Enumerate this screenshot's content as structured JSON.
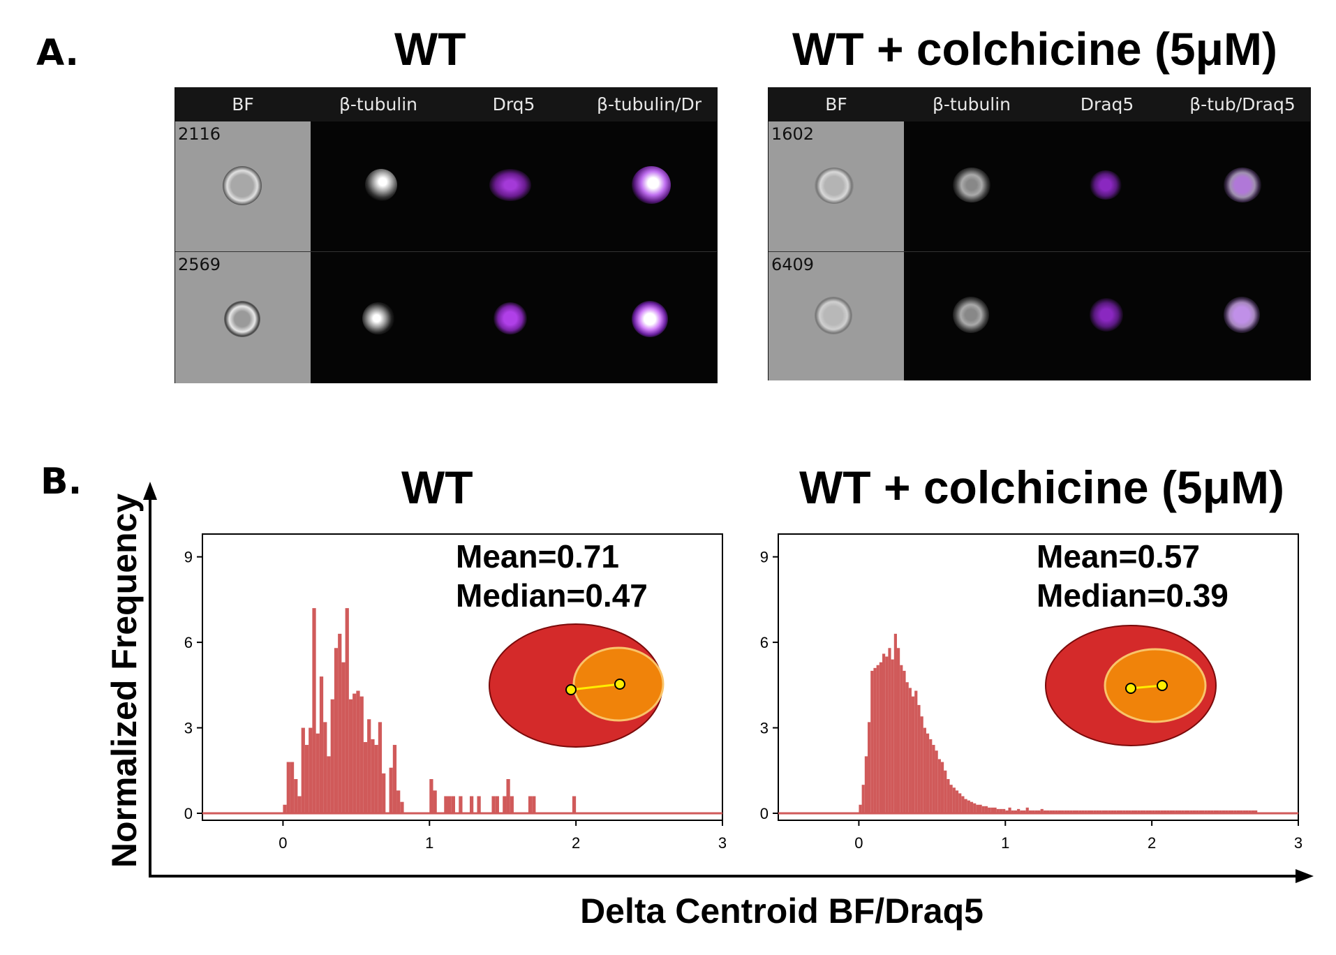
{
  "panel_a": {
    "letter": "A.",
    "wt": {
      "title": "WT",
      "columns": [
        "BF",
        "β-tubulin",
        "Drq5",
        "β-tubulin/Dr"
      ],
      "rows": [
        {
          "id": "2116"
        },
        {
          "id": "2569"
        }
      ]
    },
    "colchicine": {
      "title": "WT + colchicine (5μM)",
      "columns": [
        "BF",
        "β-tubulin",
        "Draq5",
        "β-tub/Draq5"
      ],
      "rows": [
        {
          "id": "1602"
        },
        {
          "id": "6409"
        }
      ]
    }
  },
  "panel_b": {
    "letter": "B.",
    "y_label": "Normalized Frequency",
    "x_label": "Delta Centroid BF/Draq5"
  },
  "chart_data": [
    {
      "type": "bar",
      "title": "WT",
      "xlabel": "Delta Centroid BF/Draq5",
      "ylabel": "Normalized Frequency",
      "xlim": [
        -0.55,
        3.0
      ],
      "ylim": [
        0,
        9.8
      ],
      "xticks": [
        "0",
        "1",
        "2",
        "3"
      ],
      "yticks": [
        "0",
        "3",
        "6",
        "9"
      ],
      "bin_width": 0.025,
      "bin_start": 0.0,
      "values": [
        0.3,
        1.8,
        1.8,
        1.2,
        0.6,
        3.0,
        2.4,
        3.0,
        7.2,
        2.8,
        4.8,
        3.2,
        2.0,
        4.0,
        5.8,
        6.3,
        5.3,
        7.2,
        4.0,
        4.2,
        4.3,
        4.1,
        2.5,
        3.3,
        2.6,
        2.4,
        3.2,
        1.4,
        0.0,
        1.6,
        2.4,
        0.8,
        0.4,
        0,
        0,
        0,
        0,
        0,
        0,
        0,
        1.2,
        0.8,
        0,
        0,
        0.6,
        0.6,
        0.6,
        0,
        0.6,
        0,
        0,
        0.6,
        0,
        0.6,
        0,
        0,
        0,
        0.6,
        0.6,
        0,
        0.6,
        1.2,
        0.6,
        0,
        0,
        0,
        0,
        0.6,
        0.6,
        0,
        0,
        0,
        0,
        0,
        0,
        0,
        0,
        0,
        0,
        0.6
      ],
      "stats": {
        "mean": "Mean=0.71",
        "median": "Median=0.47"
      },
      "colors": {
        "bar": "#d05a5a",
        "outer": "#d42a2a",
        "inner": "#f0830a",
        "inner_edge": "#f9c46a",
        "dot": "#ffee00"
      }
    },
    {
      "type": "bar",
      "title": "WT + colchicine (5μM)",
      "xlabel": "Delta Centroid BF/Draq5",
      "ylabel": "Normalized Frequency",
      "xlim": [
        -0.55,
        3.0
      ],
      "ylim": [
        0,
        9.8
      ],
      "xticks": [
        "0",
        "1",
        "2",
        "3"
      ],
      "yticks": [
        "0",
        "3",
        "6",
        "9"
      ],
      "bin_width": 0.02,
      "bin_start": 0.0,
      "values": [
        0.3,
        1.0,
        2.0,
        3.2,
        5.0,
        5.1,
        5.2,
        5.3,
        5.6,
        5.5,
        5.8,
        5.4,
        6.3,
        5.8,
        5.2,
        5.0,
        4.6,
        4.4,
        4.1,
        4.3,
        3.8,
        3.4,
        3.0,
        2.8,
        2.6,
        2.4,
        2.2,
        1.9,
        1.8,
        1.5,
        1.2,
        1.0,
        0.9,
        0.8,
        0.7,
        0.6,
        0.5,
        0.45,
        0.4,
        0.35,
        0.3,
        0.3,
        0.25,
        0.25,
        0.2,
        0.2,
        0.2,
        0.15,
        0.15,
        0.15,
        0.1,
        0.2,
        0.1,
        0.1,
        0.15,
        0.1,
        0.1,
        0.2,
        0.1,
        0.1,
        0.1,
        0.1,
        0.15,
        0.1,
        0.1,
        0.1,
        0.1,
        0.1,
        0.1,
        0.1,
        0.1,
        0.1,
        0.1,
        0.1,
        0.1,
        0.1,
        0.1,
        0.1,
        0.1,
        0.1,
        0.1,
        0.1,
        0.1,
        0.1,
        0.1,
        0.1,
        0.1,
        0.1,
        0.1,
        0.1,
        0.1,
        0.1,
        0.1,
        0.1,
        0.1,
        0.1,
        0.1,
        0.1,
        0.1,
        0.1,
        0.1,
        0.1,
        0.1,
        0.1,
        0.1,
        0.1,
        0.1,
        0.1,
        0.1,
        0.1,
        0.1,
        0.1,
        0.1,
        0.1,
        0.1,
        0.1,
        0.1,
        0.1,
        0.1,
        0.1,
        0.1,
        0.1,
        0.1,
        0.1,
        0.1,
        0.1,
        0.1,
        0.1,
        0.1,
        0.1,
        0.1,
        0.1,
        0.1,
        0.1,
        0.1,
        0.1
      ],
      "stats": {
        "mean": "Mean=0.57",
        "median": "Median=0.39"
      },
      "colors": {
        "bar": "#d05a5a",
        "outer": "#d42a2a",
        "inner": "#f0830a",
        "inner_edge": "#f9c46a",
        "dot": "#ffee00"
      }
    }
  ]
}
